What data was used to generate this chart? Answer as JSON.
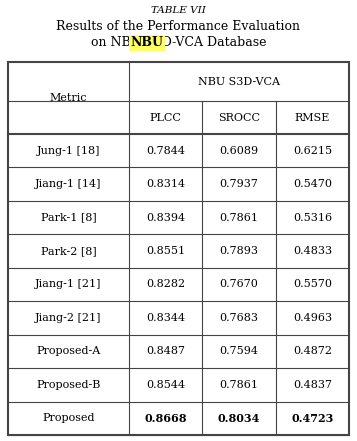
{
  "title_line1": "TABLE VII",
  "title_line2": "Results of the Performance Evaluation",
  "title_line3_before": "on ",
  "title_nbu": "NBU",
  "title_line3_after": " S3D-VCA Database",
  "col_header_group": "NBU S3D-VCA",
  "col_headers": [
    "Metric",
    "PLCC",
    "SROCC",
    "RMSE"
  ],
  "rows": [
    [
      "Jung-1 [18]",
      "0.7844",
      "0.6089",
      "0.6215"
    ],
    [
      "Jiang-1 [14]",
      "0.8314",
      "0.7937",
      "0.5470"
    ],
    [
      "Park-1 [8]",
      "0.8394",
      "0.7861",
      "0.5316"
    ],
    [
      "Park-2 [8]",
      "0.8551",
      "0.7893",
      "0.4833"
    ],
    [
      "Jiang-1 [21]",
      "0.8282",
      "0.7670",
      "0.5570"
    ],
    [
      "Jiang-2 [21]",
      "0.8344",
      "0.7683",
      "0.4963"
    ],
    [
      "Proposed-A",
      "0.8487",
      "0.7594",
      "0.4872"
    ],
    [
      "Proposed-B",
      "0.8544",
      "0.7861",
      "0.4837"
    ],
    [
      "Proposed",
      "0.8668",
      "0.8034",
      "0.4723"
    ]
  ],
  "nbu_highlight_color": "#ffff66",
  "background_color": "#ffffff",
  "border_color": "#444444",
  "font_size_title1": 7.5,
  "font_size_title2": 9.0,
  "font_size_table": 8.0
}
